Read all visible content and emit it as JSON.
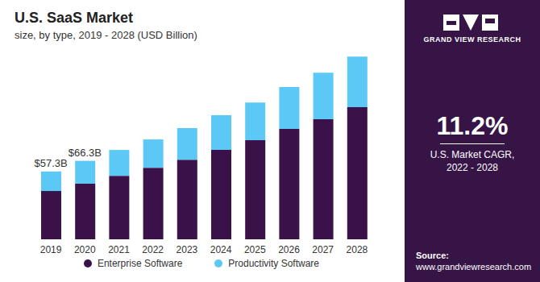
{
  "chart_data": {
    "type": "bar",
    "title": "U.S. SaaS Market",
    "subtitle": "size, by type, 2019 - 2028 (USD Billion)",
    "categories": [
      "2019",
      "2020",
      "2021",
      "2022",
      "2023",
      "2024",
      "2025",
      "2026",
      "2027",
      "2028"
    ],
    "series": [
      {
        "name": "Enterprise Software",
        "color": "#3b1149",
        "values": [
          40.8,
          47.0,
          53.7,
          60.5,
          67.3,
          75.5,
          83.7,
          93.2,
          101.4,
          111.6
        ]
      },
      {
        "name": "Productivity Software",
        "color": "#5bc8f5",
        "values": [
          16.5,
          19.3,
          21.8,
          23.9,
          26.6,
          29.3,
          31.9,
          35.4,
          39.4,
          42.8
        ]
      }
    ],
    "stacked": true,
    "ylim": [
      0,
      160
    ],
    "tick_labels": "x",
    "grid": false,
    "legend": "bottom",
    "annotations": [
      {
        "category": "2019",
        "value": 57.3,
        "label": "$57.3B"
      },
      {
        "category": "2020",
        "value": 66.3,
        "label": "$66.3B"
      }
    ]
  },
  "sidebar": {
    "logo": "GRAND VIEW RESEARCH",
    "stat": "11.2%",
    "stat_caption": [
      "U.S. Market CAGR,",
      "2022 - 2028"
    ],
    "source_label": "Source:",
    "source": "www.grandviewresearch.com"
  }
}
